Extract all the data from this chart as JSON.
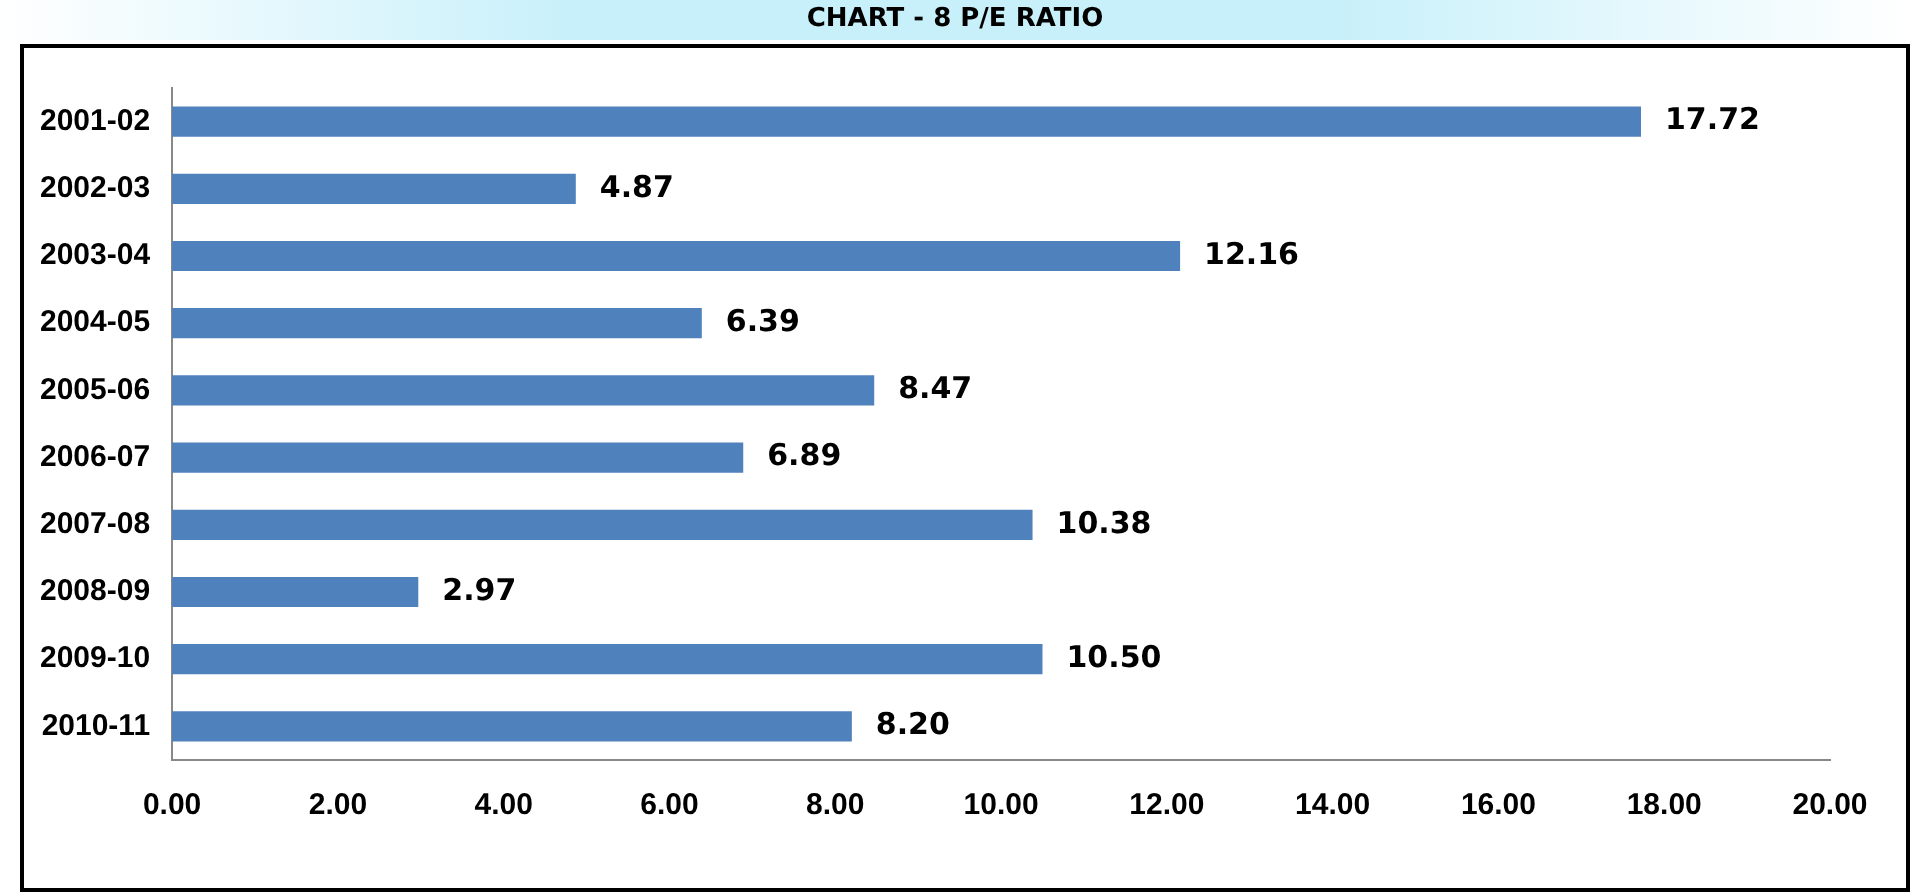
{
  "chart_data": {
    "type": "bar",
    "orientation": "horizontal",
    "title": "CHART - 8 P/E RATIO",
    "categories": [
      "2001-02",
      "2002-03",
      "2003-04",
      "2004-05",
      "2005-06",
      "2006-07",
      "2007-08",
      "2008-09",
      "2009-10",
      "2010-11"
    ],
    "values": [
      17.72,
      4.87,
      12.16,
      6.39,
      8.47,
      6.89,
      10.38,
      2.97,
      10.5,
      8.2
    ],
    "value_labels": [
      "17.72",
      "4.87",
      "12.16",
      "6.39",
      "8.47",
      "6.89",
      "10.38",
      "2.97",
      "10.50",
      "8.20"
    ],
    "color": "#4f81bd",
    "xlim": [
      0,
      20
    ],
    "xticks": [
      {
        "value": 0,
        "label": "0.00"
      },
      {
        "value": 2,
        "label": "2.00"
      },
      {
        "value": 4,
        "label": "4.00"
      },
      {
        "value": 6,
        "label": "6.00"
      },
      {
        "value": 8,
        "label": "8.00"
      },
      {
        "value": 10,
        "label": "10.00"
      },
      {
        "value": 12,
        "label": "12.00"
      },
      {
        "value": 14,
        "label": "14.00"
      },
      {
        "value": 16,
        "label": "16.00"
      },
      {
        "value": 18,
        "label": "18.00"
      },
      {
        "value": 20,
        "label": "20.00"
      }
    ],
    "grid": false,
    "legend": false
  }
}
